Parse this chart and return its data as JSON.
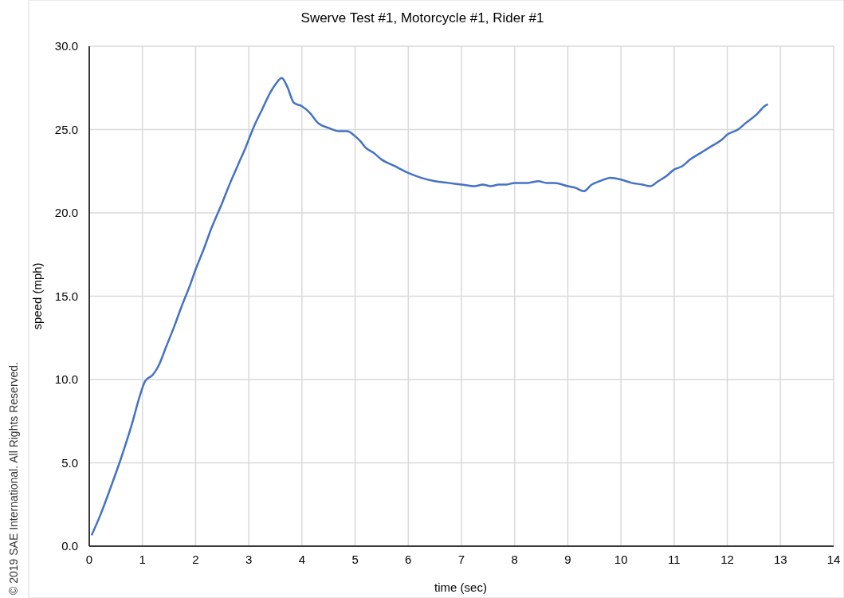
{
  "chart_data": {
    "type": "line",
    "title": "Swerve Test #1, Motorcycle #1, Rider #1",
    "xlabel": "time (sec)",
    "ylabel": "speed (mph)",
    "annotations": [
      "© 2019 SAE International. All Rights Reserved."
    ],
    "xlim": [
      0,
      14
    ],
    "xticks": [
      0,
      1,
      2,
      3,
      4,
      5,
      6,
      7,
      8,
      9,
      10,
      11,
      12,
      13,
      14
    ],
    "ylim": [
      0,
      30
    ],
    "yticks": [
      {
        "value": 0,
        "label": "0.0"
      },
      {
        "value": 5,
        "label": "5.0"
      },
      {
        "value": 10,
        "label": "10.0"
      },
      {
        "value": 15,
        "label": "15.0"
      },
      {
        "value": 20,
        "label": "20.0"
      },
      {
        "value": 25,
        "label": "25.0"
      },
      {
        "value": 30,
        "label": "30.0"
      }
    ],
    "grid": true,
    "marker": "none",
    "line_style": "solid",
    "series": [
      {
        "color": "#4472c4",
        "x": [
          0.05,
          0.2,
          0.4,
          0.6,
          0.8,
          0.95,
          1.05,
          1.2,
          1.3,
          1.45,
          1.6,
          1.75,
          1.9,
          2.0,
          2.15,
          2.3,
          2.5,
          2.65,
          2.8,
          2.95,
          3.1,
          3.25,
          3.4,
          3.5,
          3.62,
          3.72,
          3.85,
          4.0,
          4.15,
          4.3,
          4.5,
          4.7,
          4.85,
          5.0,
          5.1,
          5.2,
          5.35,
          5.5,
          5.75,
          6.0,
          6.25,
          6.5,
          6.75,
          7.0,
          7.25,
          7.4,
          7.55,
          7.7,
          7.85,
          8.0,
          8.25,
          8.45,
          8.6,
          8.75,
          9.0,
          9.15,
          9.3,
          9.45,
          9.6,
          9.8,
          10.0,
          10.2,
          10.4,
          10.55,
          10.7,
          10.85,
          11.0,
          11.15,
          11.3,
          11.5,
          11.7,
          11.9,
          12.0,
          12.2,
          12.35,
          12.55,
          12.7,
          12.75
        ],
        "values": [
          0.7,
          1.8,
          3.5,
          5.3,
          7.3,
          9.0,
          9.9,
          10.3,
          10.8,
          12.0,
          13.2,
          14.5,
          15.7,
          16.6,
          17.8,
          19.1,
          20.6,
          21.8,
          22.9,
          24.0,
          25.2,
          26.2,
          27.2,
          27.7,
          28.1,
          27.6,
          26.6,
          26.4,
          26.0,
          25.4,
          25.1,
          24.9,
          24.9,
          24.6,
          24.3,
          23.9,
          23.6,
          23.2,
          22.8,
          22.4,
          22.1,
          21.9,
          21.8,
          21.7,
          21.6,
          21.7,
          21.6,
          21.7,
          21.7,
          21.8,
          21.8,
          21.9,
          21.8,
          21.8,
          21.6,
          21.5,
          21.3,
          21.7,
          21.9,
          22.1,
          22.0,
          21.8,
          21.7,
          21.6,
          21.9,
          22.2,
          22.6,
          22.8,
          23.2,
          23.6,
          24.0,
          24.4,
          24.7,
          25.0,
          25.4,
          25.9,
          26.4,
          26.5
        ]
      }
    ]
  }
}
